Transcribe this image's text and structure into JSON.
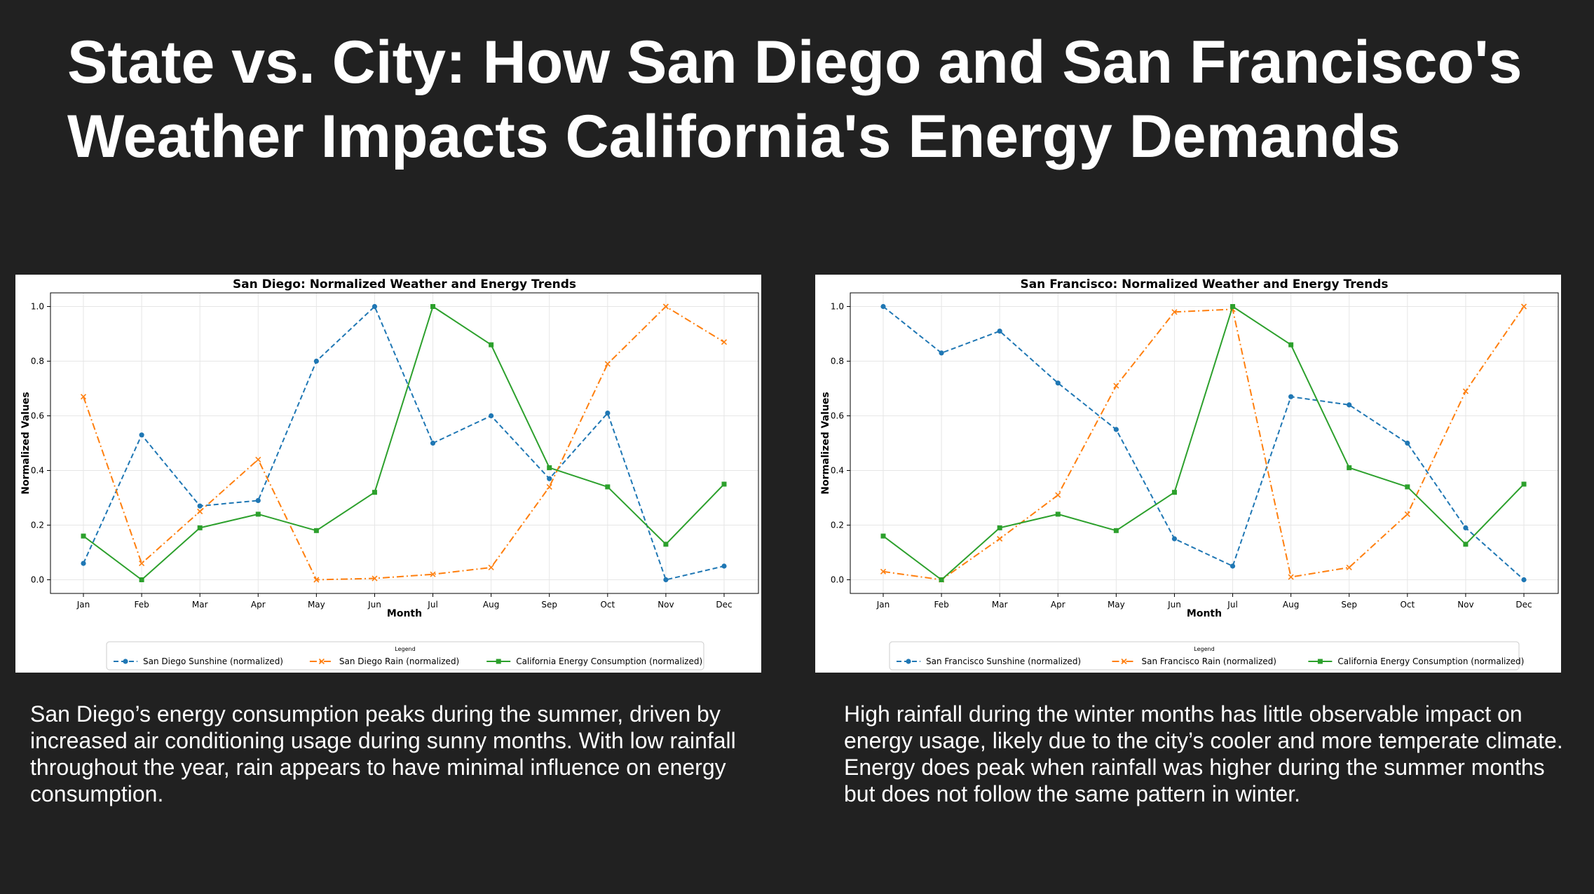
{
  "slide": {
    "title_line1": "State vs. City: How San Diego and San Francisco's",
    "title_line2": "Weather Impacts California's Energy Demands",
    "caption_left": "San Diego’s energy consumption peaks during the summer, driven by increased air conditioning usage during sunny months. With low rainfall throughout the year, rain appears to have minimal influence on energy consumption.",
    "caption_right": "High rainfall during the winter months has little observable impact on energy usage, likely due to the city’s cooler and more temperate climate. Energy does peak when rainfall was higher during the summer months but does not follow the same pattern in winter."
  },
  "colors": {
    "background": "#212121",
    "sunshine": "#1f77b4",
    "rain": "#ff7f0e",
    "energy": "#2ca02c"
  },
  "chart_data": [
    {
      "type": "line",
      "title": "San Diego: Normalized Weather and Energy Trends",
      "xlabel": "Month",
      "ylabel": "Normalized Values",
      "categories": [
        "Jan",
        "Feb",
        "Mar",
        "Apr",
        "May",
        "Jun",
        "Jul",
        "Aug",
        "Sep",
        "Oct",
        "Nov",
        "Dec"
      ],
      "ylim": [
        -0.05,
        1.05
      ],
      "yticks": [
        "0.0",
        "0.2",
        "0.4",
        "0.6",
        "0.8",
        "1.0"
      ],
      "grid": true,
      "legend_title": "Legend",
      "legend_position": "bottom",
      "series": [
        {
          "name": "San Diego Sunshine (normalized)",
          "style": "dashed",
          "marker": "circle",
          "color": "#1f77b4",
          "values": [
            0.06,
            0.53,
            0.27,
            0.29,
            0.8,
            1.0,
            0.5,
            0.6,
            0.37,
            0.61,
            0.0,
            0.05
          ]
        },
        {
          "name": "San Diego Rain (normalized)",
          "style": "dashdot",
          "marker": "x",
          "color": "#ff7f0e",
          "values": [
            0.67,
            0.06,
            0.25,
            0.44,
            0.0,
            0.005,
            0.02,
            0.045,
            0.34,
            0.79,
            1.0,
            0.87
          ]
        },
        {
          "name": "California Energy Consumption (normalized)",
          "style": "solid",
          "marker": "square",
          "color": "#2ca02c",
          "values": [
            0.16,
            0.0,
            0.19,
            0.24,
            0.18,
            0.32,
            1.0,
            0.86,
            0.41,
            0.34,
            0.13,
            0.35
          ]
        }
      ]
    },
    {
      "type": "line",
      "title": "San Francisco: Normalized Weather and Energy Trends",
      "xlabel": "Month",
      "ylabel": "Normalized Values",
      "categories": [
        "Jan",
        "Feb",
        "Mar",
        "Apr",
        "May",
        "Jun",
        "Jul",
        "Aug",
        "Sep",
        "Oct",
        "Nov",
        "Dec"
      ],
      "ylim": [
        -0.05,
        1.05
      ],
      "yticks": [
        "0.0",
        "0.2",
        "0.4",
        "0.6",
        "0.8",
        "1.0"
      ],
      "grid": true,
      "legend_title": "Legend",
      "legend_position": "bottom",
      "series": [
        {
          "name": "San Francisco Sunshine (normalized)",
          "style": "dashed",
          "marker": "circle",
          "color": "#1f77b4",
          "values": [
            1.0,
            0.83,
            0.91,
            0.72,
            0.55,
            0.15,
            0.05,
            0.67,
            0.64,
            0.5,
            0.19,
            0.0
          ]
        },
        {
          "name": "San Francisco Rain (normalized)",
          "style": "dashdot",
          "marker": "x",
          "color": "#ff7f0e",
          "values": [
            0.03,
            0.0,
            0.15,
            0.31,
            0.71,
            0.98,
            0.99,
            0.01,
            0.045,
            0.24,
            0.69,
            1.0
          ]
        },
        {
          "name": "California Energy Consumption (normalized)",
          "style": "solid",
          "marker": "square",
          "color": "#2ca02c",
          "values": [
            0.16,
            0.0,
            0.19,
            0.24,
            0.18,
            0.32,
            1.0,
            0.86,
            0.41,
            0.34,
            0.13,
            0.35
          ]
        }
      ]
    }
  ]
}
